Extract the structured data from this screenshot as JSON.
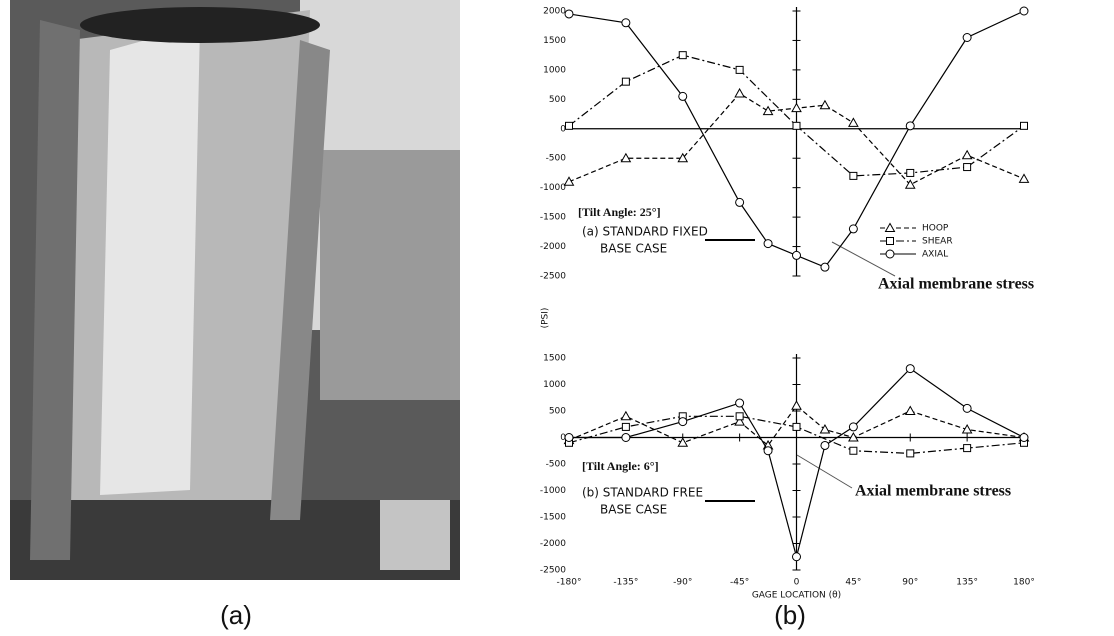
{
  "captions": [
    "(a)",
    "(b)"
  ],
  "chart_data": [
    {
      "type": "line",
      "ylabel": "(PSI)",
      "xlim": [
        -180,
        180
      ],
      "ylim": [
        -2500,
        2000
      ],
      "yticks": [
        -2500,
        -2000,
        -1500,
        -1000,
        -500,
        0,
        500,
        1000,
        1500,
        2000
      ],
      "tilt": "[Tilt Angle: 25°]",
      "case_label": [
        "(a) STANDARD FIXED",
        "BASE CASE"
      ],
      "annotation": "Axial membrane stress",
      "legend": "right",
      "series": [
        {
          "name": "HOOP",
          "color": "#000000",
          "marker": "triangle",
          "dash": "5,3",
          "x": [
            -180,
            -135,
            -90,
            -45,
            -22.5,
            0,
            22.5,
            45,
            90,
            135,
            180
          ],
          "values": [
            -900,
            -500,
            -500,
            600,
            300,
            350,
            400,
            100,
            -950,
            -450,
            -850
          ]
        },
        {
          "name": "SHEAR",
          "color": "#000000",
          "marker": "square",
          "dash": "8,3,2,3",
          "x": [
            -180,
            -135,
            -90,
            -45,
            0,
            45,
            90,
            135,
            180
          ],
          "values": [
            50,
            800,
            1250,
            1000,
            50,
            -800,
            -750,
            -650,
            50
          ]
        },
        {
          "name": "AXIAL",
          "color": "#000000",
          "marker": "circle",
          "dash": "",
          "x": [
            -180,
            -135,
            -90,
            -45,
            -22.5,
            0,
            22.5,
            45,
            90,
            135,
            180
          ],
          "values": [
            1950,
            1800,
            550,
            -1250,
            -1950,
            -2150,
            -2350,
            -1700,
            50,
            1550,
            2000
          ]
        }
      ]
    },
    {
      "type": "line",
      "xlabel": "GAGE LOCATION (θ)",
      "xlim": [
        -180,
        180
      ],
      "ylim": [
        -2500,
        1500
      ],
      "xticks": [
        {
          "value": -180,
          "label": "-180°"
        },
        {
          "value": -135,
          "label": "-135°"
        },
        {
          "value": -90,
          "label": "-90°"
        },
        {
          "value": -45,
          "label": "-45°"
        },
        0,
        {
          "value": 45,
          "label": "45°"
        },
        {
          "value": 90,
          "label": "90°"
        },
        {
          "value": 135,
          "label": "135°"
        },
        {
          "value": 180,
          "label": "180°"
        }
      ],
      "yticks": [
        -2500,
        -2000,
        -1500,
        -1000,
        -500,
        0,
        500,
        1000,
        1500
      ],
      "tilt": "[Tilt Angle: 6°]",
      "case_label": [
        "(b) STANDARD FREE",
        "BASE CASE"
      ],
      "annotation": "Axial membrane stress",
      "series": [
        {
          "color": "#000000",
          "marker": "triangle",
          "dash": "5,3",
          "x": [
            -180,
            -135,
            -90,
            -45,
            -22.5,
            0,
            22.5,
            45,
            90,
            135,
            180
          ],
          "values": [
            -50,
            400,
            -100,
            300,
            -150,
            600,
            150,
            0,
            500,
            150,
            0
          ]
        },
        {
          "color": "#000000",
          "marker": "square",
          "dash": "8,3,2,3",
          "x": [
            -180,
            -135,
            -90,
            -45,
            0,
            45,
            90,
            135,
            180
          ],
          "values": [
            -100,
            200,
            400,
            400,
            200,
            -250,
            -300,
            -200,
            -100
          ]
        },
        {
          "color": "#000000",
          "marker": "circle",
          "dash": "",
          "x": [
            -180,
            -135,
            -90,
            -45,
            -22.5,
            0,
            22.5,
            45,
            90,
            135,
            180
          ],
          "values": [
            0,
            0,
            300,
            650,
            -250,
            -2250,
            -150,
            200,
            1300,
            550,
            0
          ]
        }
      ]
    }
  ]
}
